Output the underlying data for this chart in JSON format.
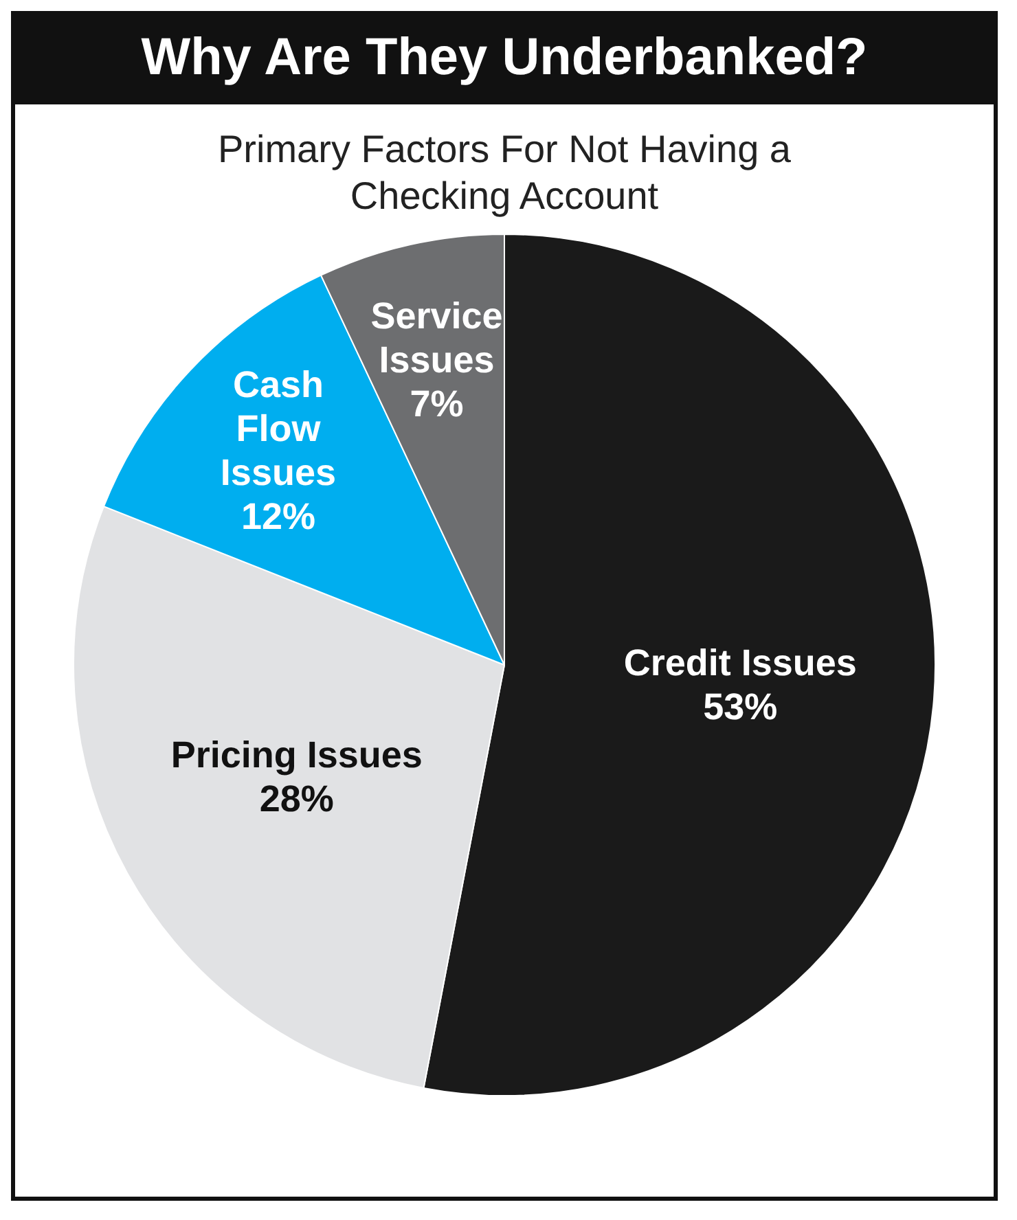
{
  "chart_data": {
    "type": "pie",
    "title": "Why Are They Underbanked?",
    "subtitle": "Primary Factors For Not Having a Checking Account",
    "categories": [
      "Credit Issues",
      "Pricing Issues",
      "Cash Flow Issues",
      "Service Issues"
    ],
    "values": [
      53,
      28,
      12,
      7
    ],
    "value_labels": [
      "53%",
      "28%",
      "12%",
      "7%"
    ],
    "colors": [
      "#1a1a1a",
      "#e1e2e4",
      "#00aeef",
      "#6d6e70"
    ],
    "legend": false
  }
}
